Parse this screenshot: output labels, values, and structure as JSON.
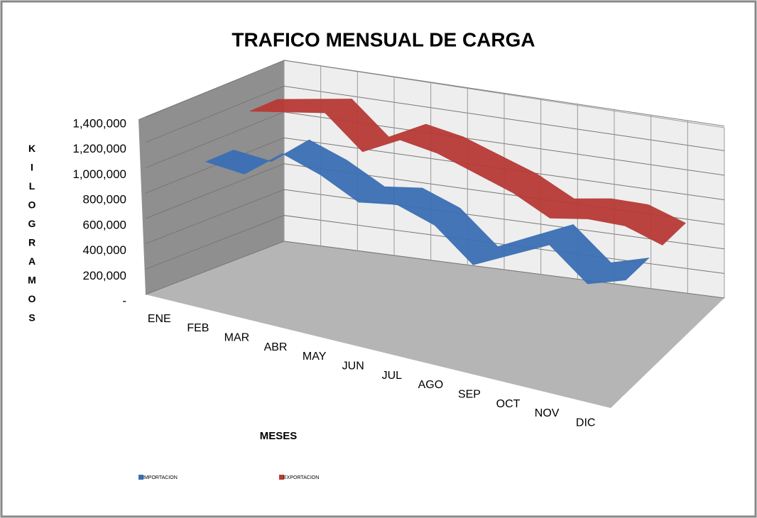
{
  "chart_data": {
    "type": "line3d",
    "title": "TRAFICO MENSUAL DE CARGA",
    "x_label": "MESES",
    "y_label": "KILOGRAMOS",
    "categories": [
      "ENE",
      "FEB",
      "MAR",
      "ABR",
      "MAY",
      "JUN",
      "JUL",
      "AGO",
      "SEP",
      "OCT",
      "NOV",
      "DIC"
    ],
    "series": [
      {
        "name": "IMPORTACION",
        "color": "#3a6fb5",
        "values": [
          950000,
          920000,
          1150000,
          1050000,
          900000,
          950000,
          850000,
          600000,
          750000,
          900000,
          650000,
          750000
        ]
      },
      {
        "name": "EXPORTACION",
        "color": "#b83a36",
        "values": [
          1200000,
          1250000,
          1300000,
          1050000,
          1200000,
          1150000,
          1050000,
          950000,
          800000,
          850000,
          850000,
          750000
        ]
      }
    ],
    "ylim": [
      0,
      1400000
    ],
    "yticks": [
      {
        "value": 0,
        "label": "-"
      },
      {
        "value": 200000,
        "label": "200,000"
      },
      {
        "value": 400000,
        "label": "400,000"
      },
      {
        "value": 600000,
        "label": "600,000"
      },
      {
        "value": 800000,
        "label": "800,000"
      },
      {
        "value": 1000000,
        "label": "1,000,000"
      },
      {
        "value": 1200000,
        "label": "1,200,000"
      },
      {
        "value": 1400000,
        "label": "1,400,000"
      }
    ],
    "grid": true
  }
}
